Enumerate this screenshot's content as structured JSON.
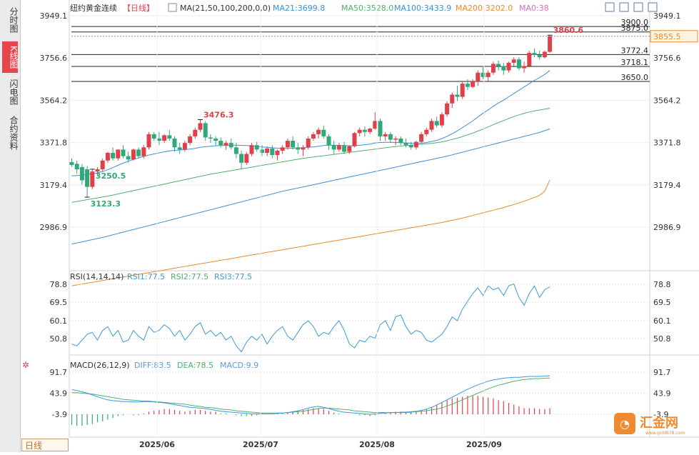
{
  "sidebar": {
    "tabs": [
      {
        "label": "分时图",
        "active": false
      },
      {
        "label": "K线图",
        "active": true
      },
      {
        "label": "闪电图",
        "active": false
      },
      {
        "label": "合约资料",
        "active": false
      }
    ]
  },
  "header": {
    "title": "纽约黄金连续",
    "period": "【日线】",
    "ma_label": "MA(21,50,100,200,0,0)",
    "ma21": "MA21:3699.8",
    "ma50": "MA50:3528.0",
    "ma100": "MA100:3433.9",
    "ma200": "MA200:3202.0",
    "ma0": "MA0:38"
  },
  "colors": {
    "up": "#e0404a",
    "down": "#2fa87a",
    "ma21": "#3a8fd8",
    "ma50": "#4fb06a",
    "ma100": "#3a8fd8",
    "ma200": "#e88a30",
    "rsi": "#3a9ad8",
    "rsi2": "#4fb06a",
    "dea": "#4fb06a",
    "macd_label": "#5b9bd5",
    "ma0": "#d070c0",
    "last_price_bg": "#fff4e0",
    "last_price_fg": "#e88a30"
  },
  "footer": {
    "timeframe": "日线",
    "watermark": "汇金网",
    "watermark_sub": "www.gold678.com"
  },
  "chart_data": {
    "type": "candlestick",
    "price_axis": {
      "ticks": [
        3949.1,
        3756.6,
        3564.2,
        3371.8,
        3179.4,
        2986.9
      ],
      "labels": [
        "3949.1",
        "3756.6",
        "3564.2",
        "3371.8",
        "3179.4",
        "2986.9"
      ]
    },
    "x_axis": {
      "labels": [
        "2025/06",
        "2025/07",
        "2025/08",
        "2025/09"
      ]
    },
    "last_price": "3855.5",
    "levels": [
      {
        "label": "3900.0",
        "value": 3900.0
      },
      {
        "label": "3875.0",
        "value": 3875.0
      },
      {
        "label": "3772.4",
        "value": 3772.4
      },
      {
        "label": "3718.1",
        "value": 3718.1
      },
      {
        "label": "3650.0",
        "value": 3650.0
      }
    ],
    "annotations": [
      {
        "label": "3860.6",
        "kind": "high"
      },
      {
        "label": "3476.3",
        "kind": "high"
      },
      {
        "label": "3250.5",
        "kind": "low"
      },
      {
        "label": "3123.3",
        "kind": "low"
      }
    ],
    "candles": [
      [
        3283,
        3300,
        3262,
        3270
      ],
      [
        3275,
        3290,
        3230,
        3250
      ],
      [
        3260,
        3275,
        3180,
        3200
      ],
      [
        3250,
        3265,
        3123,
        3170
      ],
      [
        3170,
        3250,
        3160,
        3240
      ],
      [
        3240,
        3260,
        3220,
        3250
      ],
      [
        3250,
        3300,
        3240,
        3290
      ],
      [
        3290,
        3330,
        3280,
        3325
      ],
      [
        3325,
        3350,
        3290,
        3300
      ],
      [
        3300,
        3340,
        3290,
        3340
      ],
      [
        3340,
        3360,
        3300,
        3310
      ],
      [
        3310,
        3330,
        3280,
        3295
      ],
      [
        3295,
        3345,
        3290,
        3340
      ],
      [
        3340,
        3350,
        3300,
        3310
      ],
      [
        3310,
        3360,
        3300,
        3350
      ],
      [
        3350,
        3420,
        3340,
        3410
      ],
      [
        3410,
        3420,
        3380,
        3390
      ],
      [
        3390,
        3420,
        3360,
        3380
      ],
      [
        3380,
        3410,
        3370,
        3405
      ],
      [
        3405,
        3430,
        3380,
        3390
      ],
      [
        3390,
        3400,
        3330,
        3350
      ],
      [
        3350,
        3370,
        3320,
        3340
      ],
      [
        3340,
        3380,
        3330,
        3370
      ],
      [
        3370,
        3410,
        3360,
        3400
      ],
      [
        3400,
        3440,
        3390,
        3430
      ],
      [
        3430,
        3476,
        3420,
        3460
      ],
      [
        3460,
        3470,
        3380,
        3395
      ],
      [
        3395,
        3410,
        3370,
        3390
      ],
      [
        3390,
        3400,
        3360,
        3380
      ],
      [
        3380,
        3395,
        3350,
        3360
      ],
      [
        3360,
        3380,
        3340,
        3370
      ],
      [
        3370,
        3390,
        3340,
        3350
      ],
      [
        3350,
        3370,
        3300,
        3320
      ],
      [
        3320,
        3335,
        3250,
        3280
      ],
      [
        3280,
        3330,
        3270,
        3320
      ],
      [
        3320,
        3370,
        3310,
        3360
      ],
      [
        3360,
        3375,
        3330,
        3340
      ],
      [
        3340,
        3360,
        3310,
        3325
      ],
      [
        3325,
        3355,
        3310,
        3345
      ],
      [
        3345,
        3360,
        3300,
        3315
      ],
      [
        3315,
        3340,
        3290,
        3335
      ],
      [
        3335,
        3360,
        3320,
        3350
      ],
      [
        3350,
        3390,
        3340,
        3380
      ],
      [
        3380,
        3400,
        3340,
        3350
      ],
      [
        3350,
        3370,
        3320,
        3340
      ],
      [
        3340,
        3360,
        3310,
        3350
      ],
      [
        3350,
        3400,
        3340,
        3390
      ],
      [
        3390,
        3420,
        3380,
        3410
      ],
      [
        3410,
        3440,
        3390,
        3430
      ],
      [
        3430,
        3450,
        3390,
        3400
      ],
      [
        3400,
        3410,
        3340,
        3360
      ],
      [
        3360,
        3380,
        3320,
        3340
      ],
      [
        3340,
        3370,
        3330,
        3360
      ],
      [
        3360,
        3375,
        3320,
        3330
      ],
      [
        3330,
        3360,
        3320,
        3355
      ],
      [
        3355,
        3420,
        3350,
        3415
      ],
      [
        3415,
        3440,
        3400,
        3430
      ],
      [
        3430,
        3445,
        3400,
        3420
      ],
      [
        3420,
        3440,
        3410,
        3435
      ],
      [
        3435,
        3510,
        3430,
        3470
      ],
      [
        3470,
        3480,
        3380,
        3400
      ],
      [
        3400,
        3420,
        3380,
        3410
      ],
      [
        3410,
        3420,
        3370,
        3385
      ],
      [
        3385,
        3400,
        3360,
        3390
      ],
      [
        3390,
        3400,
        3360,
        3370
      ],
      [
        3370,
        3390,
        3350,
        3360
      ],
      [
        3360,
        3375,
        3340,
        3350
      ],
      [
        3350,
        3380,
        3340,
        3375
      ],
      [
        3375,
        3420,
        3370,
        3410
      ],
      [
        3410,
        3440,
        3400,
        3430
      ],
      [
        3430,
        3480,
        3420,
        3470
      ],
      [
        3470,
        3490,
        3440,
        3450
      ],
      [
        3450,
        3510,
        3440,
        3500
      ],
      [
        3500,
        3560,
        3490,
        3550
      ],
      [
        3550,
        3600,
        3530,
        3590
      ],
      [
        3590,
        3630,
        3560,
        3580
      ],
      [
        3580,
        3650,
        3570,
        3640
      ],
      [
        3640,
        3660,
        3610,
        3625
      ],
      [
        3625,
        3660,
        3620,
        3650
      ],
      [
        3650,
        3700,
        3630,
        3690
      ],
      [
        3690,
        3720,
        3660,
        3670
      ],
      [
        3670,
        3700,
        3650,
        3690
      ],
      [
        3690,
        3740,
        3680,
        3730
      ],
      [
        3730,
        3745,
        3700,
        3720
      ],
      [
        3720,
        3735,
        3680,
        3700
      ],
      [
        3700,
        3740,
        3690,
        3735
      ],
      [
        3735,
        3760,
        3720,
        3750
      ],
      [
        3750,
        3760,
        3700,
        3710
      ],
      [
        3710,
        3740,
        3690,
        3720
      ],
      [
        3720,
        3790,
        3715,
        3780
      ],
      [
        3780,
        3800,
        3760,
        3770
      ],
      [
        3770,
        3790,
        3750,
        3760
      ],
      [
        3760,
        3790,
        3755,
        3785
      ],
      [
        3785,
        3860.6,
        3780,
        3855.5
      ]
    ],
    "ma21": [
      3220,
      3222,
      3224,
      3227,
      3230,
      3234,
      3240,
      3248,
      3258,
      3268,
      3278,
      3287,
      3295,
      3302,
      3309,
      3315,
      3320,
      3325,
      3330,
      3334,
      3336,
      3338,
      3340,
      3342,
      3345,
      3350,
      3353,
      3355,
      3357,
      3358,
      3359,
      3360,
      3360,
      3359,
      3358,
      3356,
      3354,
      3352,
      3350,
      3348,
      3346,
      3345,
      3345,
      3346,
      3347,
      3348,
      3350,
      3352,
      3355,
      3358,
      3360,
      3360,
      3359,
      3358,
      3357,
      3358,
      3360,
      3362,
      3365,
      3370,
      3372,
      3373,
      3373,
      3372,
      3371,
      3370,
      3369,
      3368,
      3369,
      3372,
      3377,
      3382,
      3390,
      3400,
      3412,
      3425,
      3440,
      3455,
      3470,
      3488,
      3505,
      3520,
      3537,
      3552,
      3565,
      3580,
      3595,
      3610,
      3625,
      3640,
      3655,
      3668,
      3682,
      3699.8
    ],
    "ma50": [
      3100,
      3104,
      3108,
      3112,
      3116,
      3120,
      3124,
      3128,
      3133,
      3138,
      3143,
      3148,
      3153,
      3158,
      3163,
      3168,
      3173,
      3178,
      3183,
      3188,
      3193,
      3198,
      3203,
      3208,
      3213,
      3218,
      3223,
      3228,
      3232,
      3236,
      3240,
      3244,
      3248,
      3252,
      3256,
      3260,
      3264,
      3268,
      3272,
      3276,
      3280,
      3284,
      3288,
      3292,
      3296,
      3300,
      3303,
      3306,
      3309,
      3312,
      3315,
      3318,
      3321,
      3324,
      3327,
      3330,
      3333,
      3336,
      3339,
      3342,
      3345,
      3348,
      3351,
      3354,
      3356,
      3358,
      3360,
      3362,
      3364,
      3366,
      3368,
      3371,
      3375,
      3380,
      3386,
      3392,
      3399,
      3407,
      3415,
      3424,
      3433,
      3443,
      3453,
      3463,
      3472,
      3481,
      3490,
      3498,
      3505,
      3511,
      3516,
      3520,
      3524,
      3528.0
    ],
    "ma100": [
      2910,
      2915,
      2920,
      2925,
      2930,
      2935,
      2940,
      2946,
      2952,
      2958,
      2964,
      2970,
      2976,
      2982,
      2988,
      2994,
      3000,
      3006,
      3012,
      3018,
      3024,
      3030,
      3036,
      3042,
      3048,
      3054,
      3060,
      3066,
      3072,
      3078,
      3084,
      3090,
      3096,
      3102,
      3108,
      3114,
      3120,
      3126,
      3132,
      3138,
      3144,
      3150,
      3155,
      3160,
      3165,
      3170,
      3175,
      3180,
      3185,
      3190,
      3195,
      3200,
      3205,
      3210,
      3215,
      3220,
      3225,
      3230,
      3235,
      3240,
      3245,
      3250,
      3255,
      3260,
      3265,
      3270,
      3275,
      3280,
      3285,
      3290,
      3295,
      3300,
      3305,
      3310,
      3316,
      3322,
      3328,
      3334,
      3340,
      3346,
      3352,
      3358,
      3364,
      3370,
      3376,
      3382,
      3388,
      3394,
      3400,
      3406,
      3412,
      3418,
      3426,
      3433.9
    ],
    "ma200": [
      2720,
      2724,
      2728,
      2732,
      2736,
      2740,
      2744,
      2748,
      2752,
      2756,
      2760,
      2764,
      2768,
      2772,
      2776,
      2780,
      2784,
      2788,
      2792,
      2796,
      2800,
      2804,
      2808,
      2812,
      2816,
      2820,
      2824,
      2828,
      2832,
      2836,
      2840,
      2844,
      2848,
      2852,
      2856,
      2860,
      2864,
      2868,
      2872,
      2876,
      2880,
      2884,
      2888,
      2892,
      2896,
      2900,
      2904,
      2908,
      2912,
      2916,
      2920,
      2924,
      2928,
      2932,
      2936,
      2940,
      2944,
      2948,
      2952,
      2956,
      2960,
      2964,
      2968,
      2972,
      2976,
      2980,
      2984,
      2988,
      2992,
      2996,
      3000,
      3004,
      3008,
      3013,
      3018,
      3023,
      3028,
      3034,
      3040,
      3046,
      3052,
      3058,
      3064,
      3070,
      3076,
      3083,
      3090,
      3097,
      3105,
      3113,
      3122,
      3132,
      3150,
      3202.0
    ],
    "rsi": {
      "label": "RSI(14,14,14)",
      "rsi1": "RSI1:77.5",
      "rsi2": "RSI2:77.5",
      "rsi3": "RSI3:77.5",
      "ticks": [
        78.8,
        69.5,
        60.1,
        50.8
      ],
      "labels": [
        "78.8",
        "69.5",
        "60.1",
        "50.8"
      ],
      "values": [
        48,
        47,
        50,
        53,
        54,
        50,
        55,
        57,
        52,
        55,
        49,
        50,
        55,
        52,
        50,
        57,
        54,
        55,
        58,
        56,
        52,
        55,
        50,
        53,
        57,
        59,
        53,
        55,
        52,
        54,
        50,
        52,
        47,
        44,
        49,
        52,
        50,
        53,
        48,
        52,
        55,
        57,
        52,
        50,
        54,
        58,
        60,
        57,
        52,
        54,
        53,
        57,
        60,
        55,
        48,
        46,
        50,
        49,
        52,
        51,
        58,
        60,
        55,
        62,
        63,
        57,
        53,
        55,
        54,
        50,
        49,
        51,
        53,
        57,
        62,
        60,
        66,
        70,
        74,
        77,
        73,
        78,
        76,
        77,
        73,
        78,
        79,
        72,
        68,
        74,
        78,
        72,
        76,
        77.5
      ]
    },
    "macd": {
      "label": "MACD(26,12,9)",
      "diff": "DIFF:83.5",
      "dea": "DEA:78.5",
      "macd": "MACD:9.9",
      "ticks": [
        91.7,
        43.9,
        -3.9
      ],
      "labels": [
        "91.7",
        "43.9",
        "-3.9"
      ],
      "diff_values": [
        52,
        50,
        47,
        44,
        40,
        36,
        32,
        29,
        27,
        26,
        25,
        25,
        24,
        24,
        25,
        25,
        24,
        23,
        22,
        20,
        18,
        16,
        14,
        12,
        11,
        10,
        9,
        7,
        5,
        3,
        2,
        1,
        0,
        -1,
        -2,
        -3,
        -3,
        -3,
        -3,
        -3,
        -2,
        -1,
        0,
        2,
        4,
        7,
        10,
        13,
        14,
        12,
        9,
        6,
        3,
        1,
        0,
        -1,
        -2,
        -3,
        -4,
        -3,
        -2,
        -1,
        0,
        0,
        1,
        1,
        2,
        3,
        5,
        8,
        12,
        17,
        23,
        29,
        35,
        41,
        47,
        53,
        58,
        63,
        67,
        71,
        74,
        76,
        78,
        79,
        80,
        80,
        81,
        82,
        82,
        82,
        83,
        83.5
      ],
      "dea_values": [
        45,
        45,
        44,
        43,
        42,
        40,
        38,
        36,
        34,
        32,
        30,
        29,
        28,
        27,
        26,
        26,
        25,
        24,
        23,
        22,
        21,
        20,
        19,
        17,
        15,
        14,
        12,
        11,
        10,
        8,
        7,
        6,
        4,
        3,
        2,
        1,
        0,
        -1,
        -1,
        -1,
        -1,
        -1,
        0,
        1,
        2,
        3,
        5,
        7,
        9,
        10,
        10,
        9,
        8,
        7,
        6,
        4,
        3,
        2,
        1,
        0,
        0,
        0,
        0,
        0,
        0,
        0,
        1,
        2,
        3,
        4,
        6,
        8,
        11,
        15,
        19,
        24,
        29,
        34,
        39,
        44,
        49,
        54,
        58,
        62,
        65,
        68,
        71,
        73,
        75,
        76,
        77,
        77,
        78,
        78.5
      ],
      "hist_values": [
        -28,
        -30,
        -30,
        -28,
        -26,
        -22,
        -20,
        -16,
        -12,
        -8,
        -6,
        -4,
        -6,
        -6,
        -2,
        2,
        4,
        6,
        8,
        8,
        6,
        4,
        2,
        4,
        6,
        6,
        4,
        2,
        2,
        -2,
        -2,
        -4,
        -6,
        -8,
        -8,
        -8,
        -6,
        -4,
        -4,
        -4,
        -2,
        -2,
        0,
        2,
        4,
        6,
        8,
        10,
        10,
        8,
        4,
        0,
        -2,
        -4,
        -4,
        -4,
        -6,
        -6,
        -8,
        -6,
        -4,
        -2,
        0,
        2,
        2,
        2,
        2,
        2,
        4,
        8,
        12,
        18,
        24,
        28,
        32,
        34,
        36,
        38,
        38,
        38,
        36,
        34,
        32,
        28,
        26,
        22,
        18,
        14,
        10,
        10,
        10,
        8,
        8,
        9.9
      ]
    }
  }
}
